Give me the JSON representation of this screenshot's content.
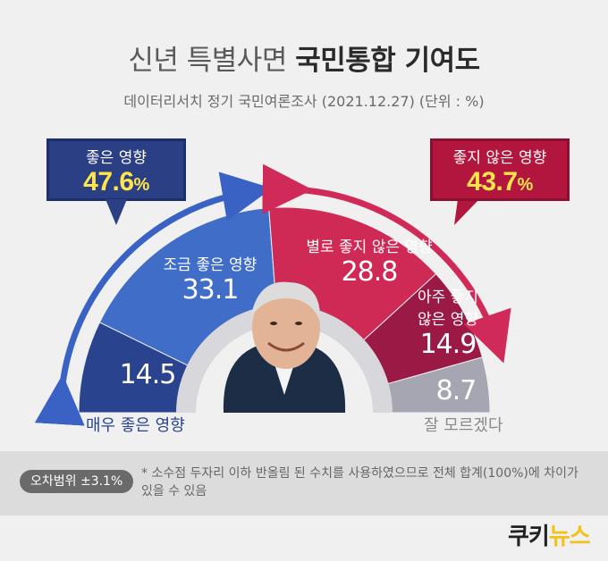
{
  "header": {
    "title_light": "신년 특별사면",
    "title_bold": "국민통합 기여도",
    "subtitle": "데이터리서치 정기 국민여론조사 (2021.12.27)  (단위 : %)"
  },
  "callouts": {
    "good": {
      "label": "좋은 영향",
      "value": "47.6",
      "unit": "%"
    },
    "bad": {
      "label": "좋지 않은 영향",
      "value": "43.7",
      "unit": "%"
    }
  },
  "chart_data": {
    "type": "pie",
    "variant": "semicircle-donut",
    "title": "신년 특별사면 국민통합 기여도",
    "subtitle": "데이터리서치 정기 국민여론조사 (2021.12.27)  (단위 : %)",
    "unit": "%",
    "categories": [
      "매우 좋은 영향",
      "조금 좋은 영향",
      "별로 좋지 않은 영향",
      "아주 좋지 않은 영향",
      "잘 모르겠다"
    ],
    "values": [
      14.5,
      33.1,
      28.8,
      14.9,
      8.7
    ],
    "colors": [
      "#2a438e",
      "#3f6dc8",
      "#cf2a55",
      "#9b1a45",
      "#a6a6b2"
    ],
    "groups": [
      {
        "label": "좋은 영향",
        "value": 47.6,
        "members": [
          "매우 좋은 영향",
          "조금 좋은 영향"
        ],
        "color": "#2a3f84"
      },
      {
        "label": "좋지 않은 영향",
        "value": 43.7,
        "members": [
          "별로 좋지 않은 영향",
          "아주 좋지 않은 영향"
        ],
        "color": "#b2163e"
      }
    ]
  },
  "segments": {
    "s1": {
      "label": "매우 좋은 영향",
      "value": "14.5"
    },
    "s2": {
      "label": "조금 좋은 영향",
      "value": "33.1"
    },
    "s3": {
      "label": "별로 좋지 않은 영향",
      "value": "28.8"
    },
    "s4": {
      "label_1": "아주 좋지",
      "label_2": "않은 영향",
      "value": "14.9"
    },
    "s5": {
      "label": "잘 모르겠다",
      "value": "8.7"
    }
  },
  "footer": {
    "badge": "오차범위 ±3.1%",
    "note": "* 소수점 두자리 이하 반올림 된 수치를 사용하였으므로 전체 합계(100%)에 차이가 있을 수 있음",
    "logo_a": "쿠키",
    "logo_b": "뉴스"
  }
}
